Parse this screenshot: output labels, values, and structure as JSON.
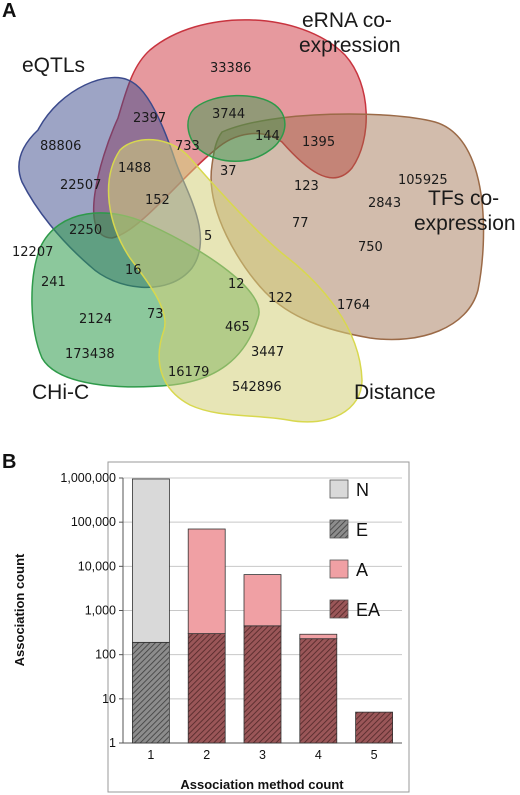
{
  "panel_a": {
    "label": "A",
    "sets": [
      {
        "key": "eqtl",
        "name_lines": [
          "eQTLs"
        ],
        "color": "#3b4a8c"
      },
      {
        "key": "erna",
        "name_lines": [
          "eRNA co-",
          "expression"
        ],
        "color": "#d2454e"
      },
      {
        "key": "tf",
        "name_lines": [
          "TFs co-",
          "expression"
        ],
        "color": "#9b6a47"
      },
      {
        "key": "dist",
        "name_lines": [
          "Distance"
        ],
        "color": "#d4d07a"
      },
      {
        "key": "chic",
        "name_lines": [
          "CHi-C"
        ],
        "color": "#2e9a4a"
      }
    ],
    "regions": [
      {
        "value": "33386"
      },
      {
        "value": "88806"
      },
      {
        "value": "2397"
      },
      {
        "value": "3744"
      },
      {
        "value": "733"
      },
      {
        "value": "144"
      },
      {
        "value": "1395"
      },
      {
        "value": "105925"
      },
      {
        "value": "1488"
      },
      {
        "value": "37"
      },
      {
        "value": "22507"
      },
      {
        "value": "123"
      },
      {
        "value": "152"
      },
      {
        "value": "2843"
      },
      {
        "value": "2250"
      },
      {
        "value": "77"
      },
      {
        "value": "12207"
      },
      {
        "value": "5"
      },
      {
        "value": "750"
      },
      {
        "value": "241"
      },
      {
        "value": "16"
      },
      {
        "value": "12"
      },
      {
        "value": "122"
      },
      {
        "value": "1764"
      },
      {
        "value": "2124"
      },
      {
        "value": "73"
      },
      {
        "value": "465"
      },
      {
        "value": "3447"
      },
      {
        "value": "173438"
      },
      {
        "value": "16179"
      },
      {
        "value": "542896"
      }
    ]
  },
  "panel_b": {
    "label": "B"
  },
  "chart_data": {
    "type": "bar",
    "stacked": true,
    "yscale": "log",
    "ylim": [
      1,
      1000000
    ],
    "categories": [
      "1",
      "2",
      "3",
      "4",
      "5"
    ],
    "xlabel": "Association method count",
    "ylabel": "Association count",
    "ytick_labels": [
      "1",
      "10",
      "100",
      "1,000",
      "10,000",
      "100,000",
      "1,000,000"
    ],
    "yticks": [
      1,
      10,
      100,
      1000,
      10000,
      100000,
      1000000
    ],
    "legend_position": "right",
    "legend": [
      {
        "name": "N",
        "color": "#d9d9d9",
        "pattern": "none"
      },
      {
        "name": "E",
        "color": "#7a7a7a",
        "pattern": "hatch-gray"
      },
      {
        "name": "A",
        "color": "#f0a0a4",
        "pattern": "none"
      },
      {
        "name": "EA",
        "color": "#8a4a4c",
        "pattern": "hatch-red"
      }
    ],
    "series": [
      {
        "name": "E",
        "color": "#7a7a7a",
        "pattern": "hatch-gray",
        "values": [
          190,
          null,
          null,
          null,
          null
        ]
      },
      {
        "name": "N",
        "color": "#d9d9d9",
        "pattern": "none",
        "values": [
          950000,
          null,
          null,
          null,
          null
        ]
      },
      {
        "name": "EA",
        "color": "#8a4a4c",
        "pattern": "hatch-red",
        "values": [
          null,
          300,
          450,
          230,
          5
        ]
      },
      {
        "name": "A",
        "color": "#f0a0a4",
        "pattern": "none",
        "values": [
          null,
          70000,
          6500,
          290,
          null
        ]
      }
    ]
  }
}
